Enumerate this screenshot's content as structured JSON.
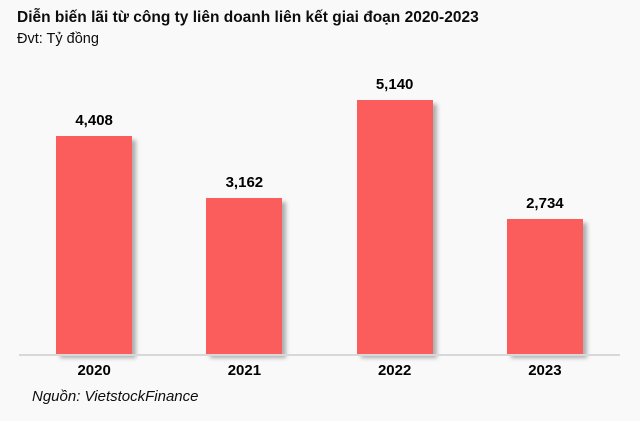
{
  "header": {
    "title": "Diễn biến lãi từ công ty liên doanh liên kết giai đoạn 2020-2023",
    "unit_label": "Đvt: Tỷ đồng"
  },
  "chart_data": {
    "type": "bar",
    "title": "Diễn biến lãi từ công ty liên doanh liên kết giai đoạn 2020-2023",
    "categories": [
      "2020",
      "2021",
      "2022",
      "2023"
    ],
    "values": [
      4408,
      3162,
      5140,
      2734
    ],
    "value_labels": [
      "4,408",
      "3,162",
      "5,140",
      "2,734"
    ],
    "xlabel": "",
    "ylabel": "Tỷ đồng",
    "ylim": [
      0,
      5870
    ],
    "grid": false,
    "legend": false,
    "bar_color": "#fb5c5c",
    "data_label_position": "above-bar"
  },
  "footer": {
    "source": "Nguồn: VietstockFinance"
  },
  "colors": {
    "bar": "#fb5c5c",
    "background": "#f9f9f9",
    "axis_line": "#d8d8d8",
    "text": "#0d0d0d"
  }
}
